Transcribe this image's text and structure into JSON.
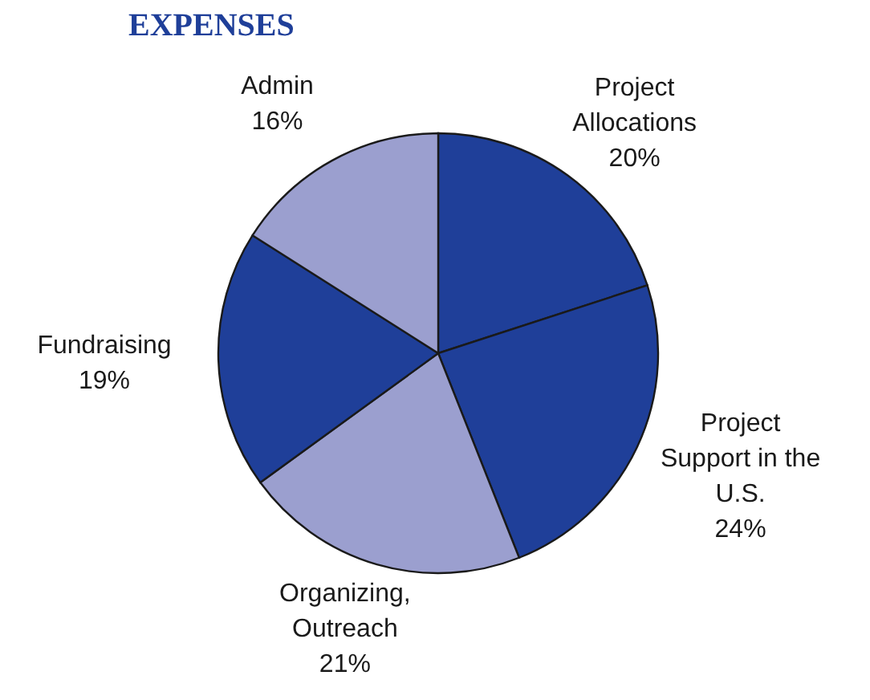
{
  "chart_data": {
    "type": "pie",
    "title": "EXPENSES",
    "categories": [
      "Project Allocations",
      "Project Support in the U.S.",
      "Organizing, Outreach",
      "Fundraising",
      "Admin"
    ],
    "values": [
      20,
      24,
      21,
      19,
      16
    ],
    "colors": [
      "#1f3f99",
      "#1f3f99",
      "#9b9fcf",
      "#1f3f99",
      "#9b9fcf"
    ],
    "value_labels": [
      "20%",
      "24%",
      "21%",
      "19%",
      "16%"
    ]
  }
}
